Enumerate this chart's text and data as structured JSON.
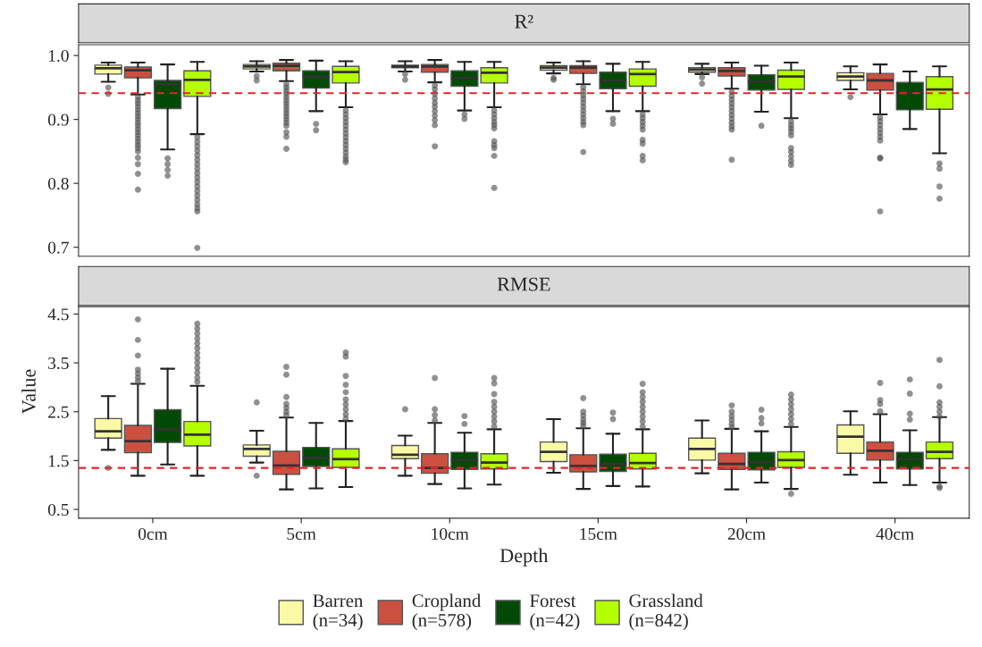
{
  "chart_data": [
    {
      "type": "box",
      "title": "R²",
      "ylabel": "Value",
      "categories": [
        null,
        null,
        null,
        null,
        null,
        null
      ],
      "ylim": [
        0.686,
        1.017
      ],
      "yticks": [
        0.7,
        0.8,
        0.9,
        {
          "value": 1.0,
          "label": "1.0"
        }
      ],
      "tick_labels": "y",
      "ref_lines": [
        {
          "axis": "y",
          "value": 0.941,
          "color": "#e8232a",
          "line_style": "dashed"
        }
      ],
      "series": [
        {
          "color": "#fafaa6",
          "boxes": [
            {
              "low": 0.959,
              "q1": 0.971,
              "median": 0.98,
              "q3": 0.985,
              "high": 0.989,
              "outliers": [
                0.95,
                0.94
              ]
            },
            {
              "low": 0.975,
              "q1": 0.979,
              "median": 0.983,
              "q3": 0.986,
              "high": 0.991,
              "outliers": [
                0.968,
                0.961
              ]
            },
            {
              "low": 0.975,
              "q1": 0.981,
              "median": 0.983,
              "q3": 0.985,
              "high": 0.991,
              "outliers": [
                0.971,
                0.962
              ]
            },
            {
              "low": 0.972,
              "q1": 0.977,
              "median": 0.981,
              "q3": 0.984,
              "high": 0.989,
              "outliers": [
                0.965,
                0.962
              ]
            },
            {
              "low": 0.971,
              "q1": 0.974,
              "median": 0.978,
              "q3": 0.981,
              "high": 0.987,
              "outliers": [
                0.966,
                0.956
              ]
            },
            {
              "low": 0.947,
              "q1": 0.961,
              "median": 0.967,
              "q3": 0.973,
              "high": 0.983,
              "outliers": [
                0.935
              ]
            }
          ]
        },
        {
          "color": "#cc5040",
          "boxes": [
            {
              "low": 0.939,
              "q1": 0.965,
              "median": 0.977,
              "q3": 0.982,
              "high": 0.989,
              "outliers": [
                0.935,
                0.93,
                0.925,
                0.92,
                0.915,
                0.91,
                0.905,
                0.9,
                0.895,
                0.89,
                0.885,
                0.88,
                0.875,
                0.87,
                0.865,
                0.86,
                0.855,
                0.85,
                0.84,
                0.83,
                0.815,
                0.79
              ]
            },
            {
              "low": 0.96,
              "q1": 0.976,
              "median": 0.984,
              "q3": 0.988,
              "high": 0.993,
              "outliers": [
                0.955,
                0.95,
                0.945,
                0.94,
                0.935,
                0.93,
                0.925,
                0.92,
                0.915,
                0.91,
                0.905,
                0.9,
                0.895,
                0.89,
                0.88,
                0.873,
                0.854
              ]
            },
            {
              "low": 0.958,
              "q1": 0.974,
              "median": 0.983,
              "q3": 0.986,
              "high": 0.993,
              "outliers": [
                0.953,
                0.947,
                0.94,
                0.933,
                0.926,
                0.92,
                0.913,
                0.906,
                0.899,
                0.891,
                0.858
              ]
            },
            {
              "low": 0.955,
              "q1": 0.972,
              "median": 0.981,
              "q3": 0.984,
              "high": 0.991,
              "outliers": [
                0.95,
                0.944,
                0.938,
                0.932,
                0.926,
                0.92,
                0.914,
                0.908,
                0.902,
                0.896,
                0.891,
                0.849
              ]
            },
            {
              "low": 0.948,
              "q1": 0.968,
              "median": 0.976,
              "q3": 0.981,
              "high": 0.989,
              "outliers": [
                0.943,
                0.937,
                0.931,
                0.925,
                0.919,
                0.913,
                0.907,
                0.901,
                0.895,
                0.889,
                0.884,
                0.837
              ]
            },
            {
              "low": 0.908,
              "q1": 0.946,
              "median": 0.961,
              "q3": 0.972,
              "high": 0.986,
              "outliers": [
                0.903,
                0.897,
                0.891,
                0.885,
                0.879,
                0.873,
                0.867,
                0.84,
                0.839,
                0.756
              ]
            }
          ]
        },
        {
          "color": "#004a05",
          "boxes": [
            {
              "low": 0.853,
              "q1": 0.917,
              "median": 0.955,
              "q3": 0.961,
              "high": 0.986,
              "outliers": [
                0.839,
                0.83,
                0.821,
                0.812
              ]
            },
            {
              "low": 0.913,
              "q1": 0.949,
              "median": 0.967,
              "q3": 0.976,
              "high": 0.992,
              "outliers": [
                0.893,
                0.883
              ]
            },
            {
              "low": 0.914,
              "q1": 0.952,
              "median": 0.965,
              "q3": 0.976,
              "high": 0.99,
              "outliers": [
                0.908,
                0.901
              ]
            },
            {
              "low": 0.913,
              "q1": 0.948,
              "median": 0.961,
              "q3": 0.974,
              "high": 0.987,
              "outliers": [
                0.901,
                0.893
              ]
            },
            {
              "low": 0.912,
              "q1": 0.946,
              "median": 0.959,
              "q3": 0.97,
              "high": 0.984,
              "outliers": [
                0.89
              ]
            },
            {
              "low": 0.885,
              "q1": 0.915,
              "median": 0.942,
              "q3": 0.958,
              "high": 0.975
            }
          ]
        },
        {
          "color": "#b4ff00",
          "boxes": [
            {
              "low": 0.877,
              "q1": 0.936,
              "median": 0.962,
              "q3": 0.976,
              "high": 0.99,
              "outliers": [
                0.872,
                0.865,
                0.858,
                0.851,
                0.844,
                0.837,
                0.83,
                0.823,
                0.816,
                0.809,
                0.802,
                0.795,
                0.788,
                0.781,
                0.774,
                0.767,
                0.761,
                0.756,
                0.699
              ]
            },
            {
              "low": 0.919,
              "q1": 0.957,
              "median": 0.974,
              "q3": 0.983,
              "high": 0.991,
              "outliers": [
                0.914,
                0.908,
                0.902,
                0.896,
                0.89,
                0.884,
                0.878,
                0.872,
                0.866,
                0.86,
                0.854,
                0.848,
                0.842,
                0.837,
                0.833
              ]
            },
            {
              "low": 0.919,
              "q1": 0.957,
              "median": 0.973,
              "q3": 0.981,
              "high": 0.99,
              "outliers": [
                0.914,
                0.908,
                0.902,
                0.896,
                0.891,
                0.886,
                0.866,
                0.86,
                0.855,
                0.843,
                0.793
              ]
            },
            {
              "low": 0.913,
              "q1": 0.952,
              "median": 0.971,
              "q3": 0.979,
              "high": 0.99,
              "outliers": [
                0.908,
                0.902,
                0.896,
                0.89,
                0.884,
                0.868,
                0.862,
                0.843,
                0.836
              ]
            },
            {
              "low": 0.902,
              "q1": 0.947,
              "median": 0.967,
              "q3": 0.977,
              "high": 0.989,
              "outliers": [
                0.897,
                0.891,
                0.886,
                0.881,
                0.875,
                0.855,
                0.849,
                0.842,
                0.835,
                0.829
              ]
            },
            {
              "low": 0.847,
              "q1": 0.916,
              "median": 0.947,
              "q3": 0.967,
              "high": 0.983,
              "outliers": [
                0.831,
                0.823,
                0.795,
                0.776
              ]
            }
          ]
        }
      ]
    },
    {
      "type": "box",
      "title": "RMSE",
      "xlabel": "Depth",
      "categories": [
        "0cm",
        "5cm",
        "10cm",
        "15cm",
        "20cm",
        "40cm"
      ],
      "ylim": [
        0.32,
        4.65
      ],
      "yticks": [
        0.5,
        1.5,
        2.5,
        3.5,
        4.5
      ],
      "legend": "bottom",
      "ref_lines": [
        {
          "axis": "y",
          "value": 1.35,
          "color": "#e8232a",
          "line_style": "dashed"
        }
      ],
      "series": [
        {
          "name": "Barren\n(n=34)",
          "color": "#fafaa6",
          "boxes": [
            {
              "low": 1.72,
              "q1": 1.96,
              "median": 2.1,
              "q3": 2.36,
              "high": 2.82,
              "outliers": [
                1.35
              ]
            },
            {
              "low": 1.46,
              "q1": 1.59,
              "median": 1.74,
              "q3": 1.82,
              "high": 2.11,
              "outliers": [
                2.69,
                1.19
              ]
            },
            {
              "low": 1.19,
              "q1": 1.54,
              "median": 1.62,
              "q3": 1.81,
              "high": 2.01,
              "outliers": [
                2.55
              ]
            },
            {
              "low": 1.25,
              "q1": 1.48,
              "median": 1.68,
              "q3": 1.88,
              "high": 2.35
            },
            {
              "low": 1.24,
              "q1": 1.51,
              "median": 1.74,
              "q3": 1.96,
              "high": 2.32
            },
            {
              "low": 1.21,
              "q1": 1.65,
              "median": 1.99,
              "q3": 2.23,
              "high": 2.51
            }
          ]
        },
        {
          "name": "Cropland\n(n=578)",
          "color": "#cc5040",
          "boxes": [
            {
              "low": 1.19,
              "q1": 1.66,
              "median": 1.9,
              "q3": 2.22,
              "high": 3.07,
              "outliers": [
                3.12,
                3.2,
                3.28,
                3.36,
                3.65,
                3.97,
                4.39
              ]
            },
            {
              "low": 0.91,
              "q1": 1.22,
              "median": 1.4,
              "q3": 1.69,
              "high": 2.38,
              "outliers": [
                2.43,
                2.5,
                2.58,
                2.66,
                2.8,
                3.26,
                3.42
              ]
            },
            {
              "low": 1.02,
              "q1": 1.24,
              "median": 1.35,
              "q3": 1.64,
              "high": 2.27,
              "outliers": [
                2.32,
                2.43,
                2.55,
                3.19
              ]
            },
            {
              "low": 0.92,
              "q1": 1.27,
              "median": 1.39,
              "q3": 1.62,
              "high": 2.16,
              "outliers": [
                2.21,
                2.27,
                2.34,
                2.42,
                2.5,
                2.78
              ]
            },
            {
              "low": 0.91,
              "q1": 1.32,
              "median": 1.43,
              "q3": 1.65,
              "high": 2.15,
              "outliers": [
                2.18,
                2.25,
                2.33,
                2.41,
                2.5,
                2.63
              ]
            },
            {
              "low": 1.05,
              "q1": 1.51,
              "median": 1.7,
              "q3": 1.88,
              "high": 2.45,
              "outliers": [
                2.51,
                2.66,
                2.74,
                3.09
              ]
            }
          ]
        },
        {
          "name": "Forest\n(n=42)",
          "color": "#004a05",
          "boxes": [
            {
              "low": 1.42,
              "q1": 1.87,
              "median": 2.13,
              "q3": 2.54,
              "high": 3.38
            },
            {
              "low": 0.93,
              "q1": 1.38,
              "median": 1.56,
              "q3": 1.77,
              "high": 2.27
            },
            {
              "low": 0.93,
              "q1": 1.32,
              "median": 1.51,
              "q3": 1.67,
              "high": 2.07,
              "outliers": [
                2.25,
                2.41
              ]
            },
            {
              "low": 0.98,
              "q1": 1.28,
              "median": 1.43,
              "q3": 1.63,
              "high": 2.05,
              "outliers": [
                2.35,
                2.48
              ]
            },
            {
              "low": 1.05,
              "q1": 1.31,
              "median": 1.47,
              "q3": 1.67,
              "high": 2.1,
              "outliers": [
                2.26,
                2.37,
                2.54
              ]
            },
            {
              "low": 1.0,
              "q1": 1.33,
              "median": 1.53,
              "q3": 1.67,
              "high": 2.12,
              "outliers": [
                2.34,
                2.46,
                2.87,
                3.16
              ]
            }
          ]
        },
        {
          "name": "Grassland\n(n=842)",
          "color": "#b4ff00",
          "boxes": [
            {
              "low": 1.19,
              "q1": 1.8,
              "median": 2.03,
              "q3": 2.3,
              "high": 3.03,
              "outliers": [
                3.11,
                3.2,
                3.3,
                3.4,
                3.5,
                3.6,
                3.7,
                3.8,
                3.9,
                4.0,
                4.1,
                4.2,
                4.3
              ]
            },
            {
              "low": 0.96,
              "q1": 1.36,
              "median": 1.53,
              "q3": 1.74,
              "high": 2.31,
              "outliers": [
                2.36,
                2.45,
                2.55,
                2.65,
                2.75,
                2.9,
                3.05,
                3.23,
                3.63,
                3.71
              ]
            },
            {
              "low": 1.01,
              "q1": 1.33,
              "median": 1.46,
              "q3": 1.64,
              "high": 2.14,
              "outliers": [
                2.2,
                2.3,
                2.4,
                2.5,
                2.6,
                2.7,
                2.86,
                3.08,
                3.19
              ]
            },
            {
              "low": 0.97,
              "q1": 1.33,
              "median": 1.45,
              "q3": 1.65,
              "high": 2.14,
              "outliers": [
                2.2,
                2.3,
                2.4,
                2.5,
                2.6,
                2.7,
                2.8,
                2.9,
                3.07
              ]
            },
            {
              "low": 0.92,
              "q1": 1.36,
              "median": 1.51,
              "q3": 1.68,
              "high": 2.19,
              "outliers": [
                2.25,
                2.35,
                2.45,
                2.55,
                2.65,
                2.75,
                2.85,
                0.82
              ]
            },
            {
              "low": 1.05,
              "q1": 1.54,
              "median": 1.68,
              "q3": 1.88,
              "high": 2.39,
              "outliers": [
                2.4,
                2.5,
                2.6,
                2.69,
                3.02,
                3.56,
                0.97,
                0.94
              ]
            }
          ]
        }
      ]
    }
  ]
}
